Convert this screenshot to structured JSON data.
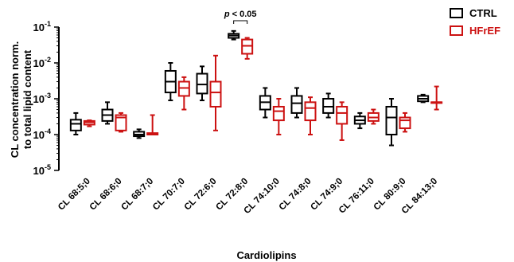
{
  "chart_data": {
    "type": "box",
    "ylabel_line1": "CL concentration norm.",
    "ylabel_line2": "to total lipid content",
    "xlabel": "Cardiolipins",
    "yscale": "log",
    "ylim": [
      1e-05,
      0.1
    ],
    "yticks": [
      {
        "value": 0.1,
        "base": "10",
        "exp": "-1"
      },
      {
        "value": 0.01,
        "base": "10",
        "exp": "-2"
      },
      {
        "value": 0.001,
        "base": "10",
        "exp": "-3"
      },
      {
        "value": 0.0001,
        "base": "10",
        "exp": "-4"
      },
      {
        "value": 1e-05,
        "base": "10",
        "exp": "-5"
      }
    ],
    "categories": [
      "CL 68:5;0",
      "CL 68:6;0",
      "CL 68:7;0",
      "CL 70:7;0",
      "CL 72:6;0",
      "CL 72:8;0",
      "CL 74:10;0",
      "CL 74:8;0",
      "CL 74:9;0",
      "CL 76:11;0",
      "CL 80:9;0",
      "CL 84:13;0"
    ],
    "legend": [
      {
        "name": "CTRL",
        "color": "#000000"
      },
      {
        "name": "HFrEF",
        "color": "#cc1111"
      }
    ],
    "legend_position": "top-right",
    "series": [
      {
        "name": "CTRL",
        "color": "#000000",
        "boxes": [
          {
            "min": 0.0001,
            "q1": 0.00013,
            "median": 0.0002,
            "q3": 0.00026,
            "max": 0.0004
          },
          {
            "min": 0.0002,
            "q1": 0.00024,
            "median": 0.00035,
            "q3": 0.0005,
            "max": 0.0008
          },
          {
            "min": 8e-05,
            "q1": 9e-05,
            "median": 0.0001,
            "q3": 0.00012,
            "max": 0.00014
          },
          {
            "min": 0.0009,
            "q1": 0.0015,
            "median": 0.003,
            "q3": 0.006,
            "max": 0.01
          },
          {
            "min": 0.0009,
            "q1": 0.0014,
            "median": 0.0025,
            "q3": 0.005,
            "max": 0.008
          },
          {
            "min": 0.045,
            "q1": 0.05,
            "median": 0.058,
            "q3": 0.065,
            "max": 0.078
          },
          {
            "min": 0.0003,
            "q1": 0.0005,
            "median": 0.0008,
            "q3": 0.0012,
            "max": 0.002
          },
          {
            "min": 0.0003,
            "q1": 0.0004,
            "median": 0.00075,
            "q3": 0.0012,
            "max": 0.002
          },
          {
            "min": 0.0003,
            "q1": 0.0004,
            "median": 0.0006,
            "q3": 0.001,
            "max": 0.0014
          },
          {
            "min": 0.00015,
            "q1": 0.0002,
            "median": 0.00025,
            "q3": 0.00032,
            "max": 0.0004
          },
          {
            "min": 5e-05,
            "q1": 0.0001,
            "median": 0.0003,
            "q3": 0.0006,
            "max": 0.001
          },
          {
            "min": 0.0008,
            "q1": 0.00085,
            "median": 0.001,
            "q3": 0.0012,
            "max": 0.0013
          }
        ]
      },
      {
        "name": "HFrEF",
        "color": "#cc1111",
        "boxes": [
          {
            "min": 0.00017,
            "q1": 0.00019,
            "median": 0.00022,
            "q3": 0.00024,
            "max": 0.00025
          },
          {
            "min": 0.00012,
            "q1": 0.00013,
            "median": 0.0003,
            "q3": 0.00035,
            "max": 0.0004
          },
          {
            "min": 0.0001,
            "q1": 0.0001,
            "median": 0.0001,
            "q3": 0.00011,
            "max": 0.00035
          },
          {
            "min": 0.0005,
            "q1": 0.0012,
            "median": 0.002,
            "q3": 0.003,
            "max": 0.004
          },
          {
            "min": 0.00013,
            "q1": 0.0006,
            "median": 0.0015,
            "q3": 0.003,
            "max": 0.016
          },
          {
            "min": 0.013,
            "q1": 0.018,
            "median": 0.03,
            "q3": 0.045,
            "max": 0.05
          },
          {
            "min": 0.0001,
            "q1": 0.00025,
            "median": 0.00045,
            "q3": 0.0006,
            "max": 0.001
          },
          {
            "min": 0.0001,
            "q1": 0.00025,
            "median": 0.00055,
            "q3": 0.0008,
            "max": 0.0011
          },
          {
            "min": 7e-05,
            "q1": 0.0002,
            "median": 0.0004,
            "q3": 0.0006,
            "max": 0.0008
          },
          {
            "min": 0.0002,
            "q1": 0.00024,
            "median": 0.0003,
            "q3": 0.0004,
            "max": 0.0005
          },
          {
            "min": 0.00012,
            "q1": 0.00015,
            "median": 0.00025,
            "q3": 0.0003,
            "max": 0.0004
          },
          {
            "min": 0.0005,
            "q1": 0.0008,
            "median": 0.0008,
            "q3": 0.0008,
            "max": 0.0022
          }
        ]
      }
    ],
    "annotation": {
      "category_index": 5,
      "prefix": "p",
      "text": " < 0.05"
    }
  }
}
